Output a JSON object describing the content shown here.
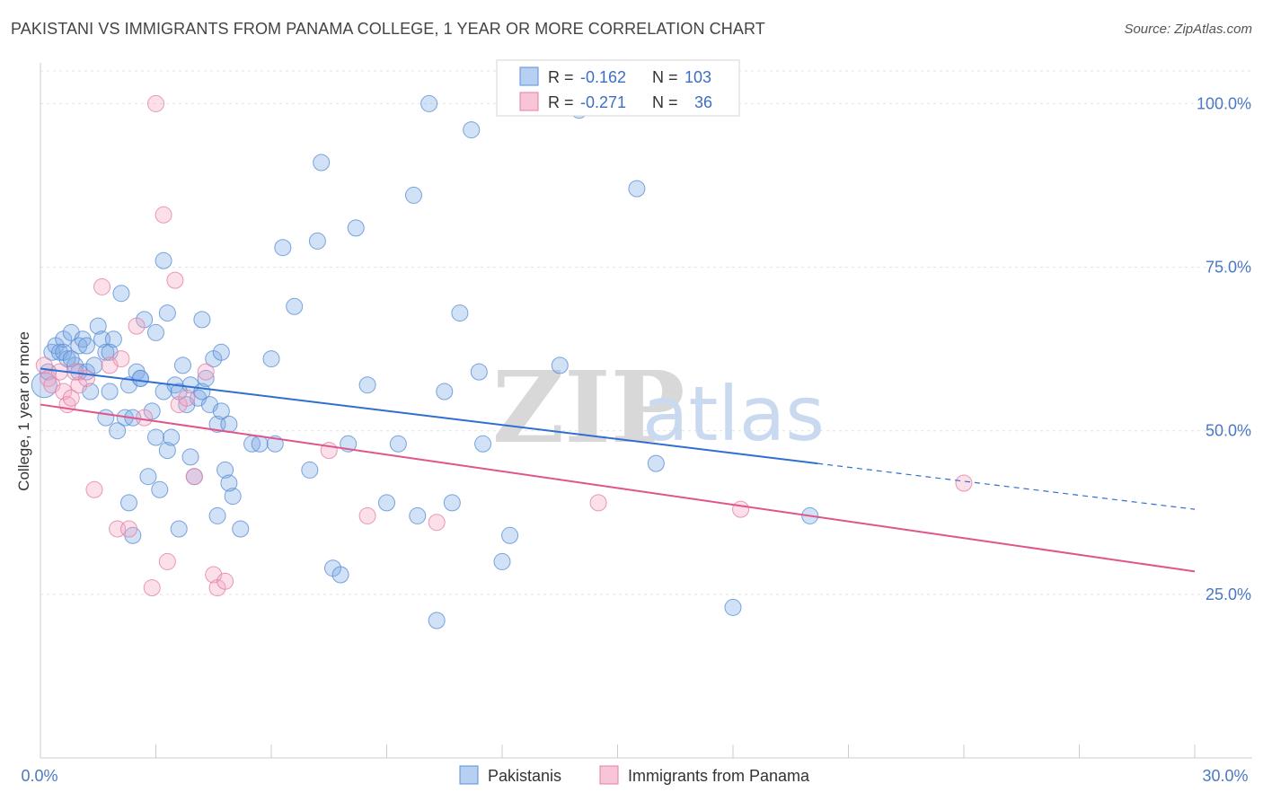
{
  "chart_data": {
    "type": "scatter",
    "title": "PAKISTANI VS IMMIGRANTS FROM PANAMA COLLEGE, 1 YEAR OR MORE CORRELATION CHART",
    "source": "Source: ZipAtlas.com",
    "xlabel": "",
    "ylabel": "College, 1 year or more",
    "xlim": [
      0,
      30
    ],
    "ylim": [
      0,
      105
    ],
    "x_tick_labels": [
      "0.0%",
      "30.0%"
    ],
    "y_ticks": [
      25,
      50,
      75,
      100
    ],
    "y_tick_labels": [
      "25.0%",
      "50.0%",
      "75.0%",
      "100.0%"
    ],
    "watermark": {
      "zip": "ZIP",
      "atlas": "atlas"
    },
    "legend": {
      "rows": [
        {
          "r_label": "R = ",
          "r_value": "-0.162",
          "n_label": "N = ",
          "n_value": "103"
        },
        {
          "r_label": "R = ",
          "r_value": "-0.271",
          "n_label": "N = ",
          "n_value": "36"
        }
      ]
    },
    "series": [
      {
        "name": "Pakistanis",
        "color": "#7aaae6",
        "edge": "#5b8fd6",
        "line_color": "#2f6fd0",
        "trend": {
          "x0": 0.0,
          "y0": 59.5,
          "x1": 20.2,
          "y1": 45.0,
          "dash_x1": 30.0,
          "dash_y1": 38.0
        },
        "points": [
          [
            0.1,
            57
          ],
          [
            0.2,
            59
          ],
          [
            0.3,
            62
          ],
          [
            0.4,
            63
          ],
          [
            0.5,
            62
          ],
          [
            0.6,
            64
          ],
          [
            0.7,
            61
          ],
          [
            0.8,
            65
          ],
          [
            0.9,
            60
          ],
          [
            1.0,
            63
          ],
          [
            1.1,
            64
          ],
          [
            1.2,
            59
          ],
          [
            1.3,
            56
          ],
          [
            1.4,
            60
          ],
          [
            1.5,
            66
          ],
          [
            1.6,
            64
          ],
          [
            1.7,
            62
          ],
          [
            1.8,
            56
          ],
          [
            1.9,
            64
          ],
          [
            2.0,
            50
          ],
          [
            2.1,
            71
          ],
          [
            2.2,
            52
          ],
          [
            2.3,
            57
          ],
          [
            2.4,
            52
          ],
          [
            2.5,
            59
          ],
          [
            2.6,
            58
          ],
          [
            2.7,
            67
          ],
          [
            2.8,
            43
          ],
          [
            2.9,
            53
          ],
          [
            3.0,
            49
          ],
          [
            3.1,
            41
          ],
          [
            3.2,
            56
          ],
          [
            3.3,
            47
          ],
          [
            3.4,
            49
          ],
          [
            3.5,
            57
          ],
          [
            3.6,
            56
          ],
          [
            3.7,
            60
          ],
          [
            3.8,
            54
          ],
          [
            3.9,
            57
          ],
          [
            4.0,
            43
          ],
          [
            4.1,
            55
          ],
          [
            4.2,
            56
          ],
          [
            4.3,
            58
          ],
          [
            4.4,
            54
          ],
          [
            4.5,
            61
          ],
          [
            4.6,
            51
          ],
          [
            4.7,
            53
          ],
          [
            4.8,
            44
          ],
          [
            4.9,
            51
          ],
          [
            5.0,
            40
          ],
          [
            1.2,
            63
          ],
          [
            1.8,
            62
          ],
          [
            2.6,
            58
          ],
          [
            3.0,
            65
          ],
          [
            3.3,
            68
          ],
          [
            3.9,
            46
          ],
          [
            4.2,
            67
          ],
          [
            4.7,
            62
          ],
          [
            2.3,
            39
          ],
          [
            1.7,
            52
          ],
          [
            3.6,
            35
          ],
          [
            2.4,
            34
          ],
          [
            4.6,
            37
          ],
          [
            4.9,
            42
          ],
          [
            5.2,
            35
          ],
          [
            5.5,
            48
          ],
          [
            5.7,
            48
          ],
          [
            6.0,
            61
          ],
          [
            6.3,
            78
          ],
          [
            6.6,
            69
          ],
          [
            7.0,
            44
          ],
          [
            7.3,
            91
          ],
          [
            7.6,
            29
          ],
          [
            7.8,
            28
          ],
          [
            8.0,
            48
          ],
          [
            6.1,
            48
          ],
          [
            7.2,
            79
          ],
          [
            8.2,
            81
          ],
          [
            8.5,
            57
          ],
          [
            9.0,
            39
          ],
          [
            9.3,
            48
          ],
          [
            9.7,
            86
          ],
          [
            10.3,
            21
          ],
          [
            10.1,
            100
          ],
          [
            10.7,
            39
          ],
          [
            10.9,
            68
          ],
          [
            11.2,
            96
          ],
          [
            10.5,
            56
          ],
          [
            9.8,
            37
          ],
          [
            11.5,
            48
          ],
          [
            12.0,
            30
          ],
          [
            12.2,
            34
          ],
          [
            11.4,
            59
          ],
          [
            13.5,
            60
          ],
          [
            14.0,
            99
          ],
          [
            15.5,
            87
          ],
          [
            18.0,
            23
          ],
          [
            20.0,
            37
          ],
          [
            16.0,
            45
          ],
          [
            3.2,
            76
          ],
          [
            0.6,
            62
          ],
          [
            0.8,
            61
          ],
          [
            1.0,
            59
          ]
        ]
      },
      {
        "name": "Immigrants from Panama",
        "color": "#f4a6c4",
        "edge": "#e27fa6",
        "line_color": "#e0558b",
        "trend": {
          "x0": 0.0,
          "y0": 54.0,
          "x1": 30.0,
          "y1": 28.5
        },
        "points": [
          [
            0.1,
            60
          ],
          [
            0.2,
            58
          ],
          [
            0.3,
            57
          ],
          [
            0.5,
            59
          ],
          [
            0.6,
            56
          ],
          [
            0.7,
            54
          ],
          [
            0.8,
            55
          ],
          [
            1.0,
            57
          ],
          [
            1.2,
            58
          ],
          [
            1.4,
            41
          ],
          [
            1.6,
            72
          ],
          [
            1.8,
            60
          ],
          [
            2.0,
            35
          ],
          [
            2.1,
            61
          ],
          [
            2.3,
            35
          ],
          [
            2.5,
            66
          ],
          [
            2.7,
            52
          ],
          [
            2.9,
            26
          ],
          [
            3.0,
            100
          ],
          [
            3.2,
            83
          ],
          [
            3.3,
            30
          ],
          [
            3.5,
            73
          ],
          [
            3.6,
            54
          ],
          [
            3.8,
            55
          ],
          [
            4.0,
            43
          ],
          [
            4.3,
            59
          ],
          [
            4.5,
            28
          ],
          [
            4.6,
            26
          ],
          [
            4.8,
            27
          ],
          [
            7.5,
            47
          ],
          [
            8.5,
            37
          ],
          [
            10.3,
            36
          ],
          [
            14.5,
            39
          ],
          [
            18.2,
            38
          ],
          [
            24.0,
            42
          ],
          [
            0.9,
            59
          ]
        ]
      }
    ]
  }
}
